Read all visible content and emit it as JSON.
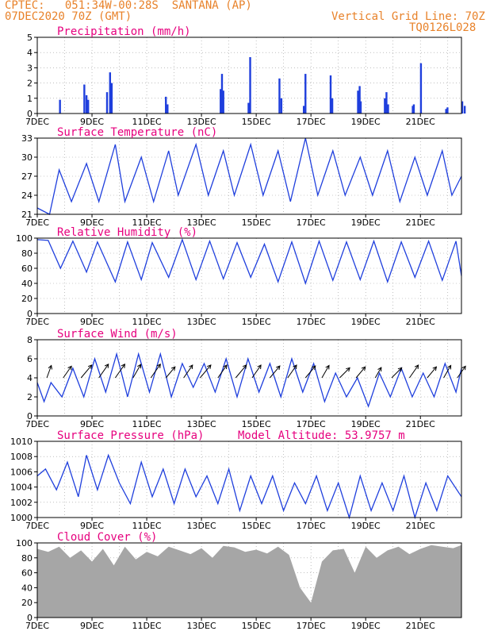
{
  "header": {
    "line1": "CPTEC:   051:34W-00:28S  SANTANA (AP)",
    "line2": "07DEC2020 70Z (GMT)",
    "right1": "Vertical Grid Line: 70Z",
    "right2": "TQ0126L028"
  },
  "colors": {
    "header": "#e8822a",
    "title": "#e6007e",
    "series": "#1f3fdd",
    "bars": "#1f3fdd",
    "cloud": "#a6a6a6",
    "grid": "#999999"
  },
  "x_ticks": [
    "7DEC",
    "9DEC",
    "11DEC",
    "13DEC",
    "15DEC",
    "17DEC",
    "19DEC",
    "21DEC"
  ],
  "chart_data": [
    {
      "type": "bar",
      "title": "Precipitation (mm/h)",
      "ylim": [
        0,
        5
      ],
      "yticks": [
        "0",
        "1",
        "2",
        "3",
        "4",
        "5"
      ],
      "x_days": [
        0.83,
        1.72,
        1.8,
        1.86,
        2.55,
        2.66,
        2.72,
        4.7,
        4.76,
        6.7,
        6.75,
        6.8,
        7.72,
        7.78,
        8.85,
        8.92,
        9.74,
        9.8,
        10.72,
        10.78,
        11.72,
        11.78,
        11.82,
        12.7,
        12.76,
        12.82,
        13.72,
        13.76,
        14.02,
        14.94,
        14.99,
        15.53,
        15.62
      ],
      "values": [
        0.9,
        1.9,
        1.2,
        0.9,
        1.4,
        2.7,
        2.0,
        1.1,
        0.6,
        1.6,
        2.6,
        1.5,
        0.7,
        3.7,
        2.3,
        1.0,
        0.5,
        2.6,
        2.5,
        1.0,
        1.5,
        1.8,
        0.8,
        1.0,
        1.4,
        0.6,
        0.5,
        0.6,
        3.3,
        0.3,
        0.4,
        0.8,
        0.5
      ]
    },
    {
      "type": "line",
      "title": "Surface Temperature (nC)",
      "ylim": [
        21,
        33
      ],
      "yticks": [
        "21",
        "24",
        "27",
        "30",
        "33"
      ],
      "x_days": [
        0,
        0.45,
        0.8,
        1.25,
        1.8,
        2.25,
        2.85,
        3.2,
        3.8,
        4.25,
        4.8,
        5.15,
        5.8,
        6.25,
        6.8,
        7.2,
        7.8,
        8.25,
        8.8,
        9.25,
        9.8,
        10.25,
        10.8,
        11.25,
        11.8,
        12.25,
        12.8,
        13.25,
        13.8,
        14.25,
        14.8,
        15.15,
        15.5
      ],
      "values": [
        22,
        21,
        28,
        23,
        29,
        23,
        32,
        23,
        30,
        23,
        31,
        24,
        32,
        24,
        31,
        24,
        32,
        24,
        31,
        23,
        33,
        24,
        31,
        24,
        30,
        24,
        31,
        23,
        30,
        24,
        31,
        24,
        27
      ]
    },
    {
      "type": "line",
      "title": "Relative Humidity (%)",
      "ylim": [
        0,
        100
      ],
      "yticks": [
        "0",
        "20",
        "40",
        "60",
        "80",
        "100"
      ],
      "x_days": [
        0,
        0.4,
        0.85,
        1.3,
        1.8,
        2.2,
        2.85,
        3.3,
        3.8,
        4.2,
        4.8,
        5.3,
        5.8,
        6.3,
        6.8,
        7.3,
        7.8,
        8.3,
        8.8,
        9.3,
        9.8,
        10.3,
        10.8,
        11.3,
        11.8,
        12.3,
        12.8,
        13.3,
        13.8,
        14.3,
        14.8,
        15.3,
        15.5
      ],
      "values": [
        98,
        97,
        60,
        96,
        55,
        95,
        42,
        95,
        45,
        94,
        48,
        98,
        45,
        96,
        46,
        94,
        48,
        92,
        42,
        95,
        40,
        96,
        44,
        95,
        45,
        96,
        42,
        95,
        48,
        96,
        44,
        96,
        50
      ]
    },
    {
      "type": "line",
      "title": "Surface Wind (m/s)",
      "ylim": [
        0,
        8
      ],
      "yticks": [
        "0",
        "2",
        "4",
        "6",
        "8"
      ],
      "x_days": [
        0,
        0.25,
        0.5,
        0.9,
        1.3,
        1.7,
        2.1,
        2.5,
        2.9,
        3.3,
        3.7,
        4.1,
        4.5,
        4.9,
        5.3,
        5.7,
        6.1,
        6.5,
        6.9,
        7.3,
        7.7,
        8.1,
        8.5,
        8.9,
        9.3,
        9.7,
        10.1,
        10.5,
        10.9,
        11.3,
        11.7,
        12.1,
        12.5,
        12.9,
        13.3,
        13.7,
        14.1,
        14.5,
        14.9,
        15.3,
        15.5
      ],
      "values": [
        3.5,
        1.5,
        3.5,
        2.0,
        5.0,
        2.0,
        6.0,
        2.5,
        6.5,
        2.0,
        6.5,
        2.5,
        6.5,
        2.0,
        5.5,
        3.0,
        5.5,
        2.5,
        6.0,
        2.0,
        6.0,
        2.5,
        5.5,
        2.0,
        6.0,
        2.5,
        5.5,
        1.5,
        4.5,
        2.0,
        4.0,
        1.0,
        4.5,
        2.0,
        5.0,
        2.0,
        4.5,
        2.0,
        5.5,
        2.5,
        5.0
      ]
    },
    {
      "type": "line",
      "title": "Surface Pressure (hPa)",
      "annotation": "Model Altitude: 53.9757 m",
      "ylim": [
        999,
        1010
      ],
      "yticks": [
        "1000",
        "1002",
        "1004",
        "1006",
        "1008",
        "1010"
      ],
      "x_days": [
        0,
        0.3,
        0.7,
        1.1,
        1.5,
        1.8,
        2.2,
        2.6,
        3.0,
        3.4,
        3.8,
        4.2,
        4.6,
        5.0,
        5.4,
        5.8,
        6.2,
        6.6,
        7.0,
        7.4,
        7.8,
        8.2,
        8.6,
        9.0,
        9.4,
        9.8,
        10.2,
        10.6,
        11.0,
        11.4,
        11.8,
        12.2,
        12.6,
        13.0,
        13.4,
        13.8,
        14.2,
        14.6,
        15.0,
        15.5
      ],
      "values": [
        1005,
        1006,
        1003,
        1007,
        1002,
        1008,
        1003,
        1008,
        1004,
        1001,
        1007,
        1002,
        1006,
        1001,
        1006,
        1002,
        1005,
        1001,
        1006,
        1000,
        1005,
        1001,
        1005,
        1000,
        1004,
        1001,
        1005,
        1000,
        1004,
        999,
        1005,
        1000,
        1004,
        1000,
        1005,
        999,
        1004,
        1000,
        1005,
        1002
      ]
    },
    {
      "type": "area",
      "title": "Cloud Cover (%)",
      "ylim": [
        0,
        100
      ],
      "yticks": [
        "0",
        "20",
        "40",
        "60",
        "80",
        "100"
      ],
      "x_days": [
        0,
        0.4,
        0.8,
        1.2,
        1.6,
        2.0,
        2.4,
        2.8,
        3.2,
        3.6,
        4.0,
        4.4,
        4.8,
        5.2,
        5.6,
        6.0,
        6.4,
        6.8,
        7.2,
        7.6,
        8.0,
        8.4,
        8.8,
        9.2,
        9.6,
        10.0,
        10.4,
        10.8,
        11.2,
        11.6,
        12.0,
        12.4,
        12.8,
        13.2,
        13.6,
        14.0,
        14.4,
        14.8,
        15.2,
        15.5
      ],
      "values": [
        92,
        88,
        95,
        80,
        90,
        75,
        92,
        70,
        95,
        78,
        88,
        82,
        95,
        90,
        85,
        93,
        80,
        96,
        94,
        88,
        91,
        86,
        95,
        84,
        40,
        20,
        75,
        90,
        92,
        60,
        95,
        80,
        90,
        95,
        85,
        92,
        97,
        95,
        93,
        97
      ]
    }
  ],
  "wind_arrows": {
    "x_days": [
      0.35,
      0.95,
      1.6,
      2.25,
      2.85,
      3.5,
      4.15,
      4.7,
      5.35,
      5.95,
      6.6,
      7.25,
      7.85,
      8.5,
      9.15,
      9.8,
      10.4,
      11.05,
      11.65,
      12.35,
      12.95,
      13.6,
      14.25,
      14.85,
      15.35
    ],
    "directions_deg": [
      200,
      215,
      220,
      215,
      215,
      210,
      215,
      220,
      215,
      220,
      215,
      220,
      215,
      220,
      215,
      220,
      210,
      225,
      220,
      210,
      225,
      215,
      220,
      210,
      215
    ],
    "speeds": [
      3.5,
      4,
      5,
      5,
      5,
      4.5,
      5,
      4,
      4.5,
      5,
      4.5,
      5,
      4.5,
      4.5,
      4.5,
      4.5,
      4,
      4,
      4,
      3,
      4,
      4.5,
      4,
      4,
      4
    ]
  }
}
